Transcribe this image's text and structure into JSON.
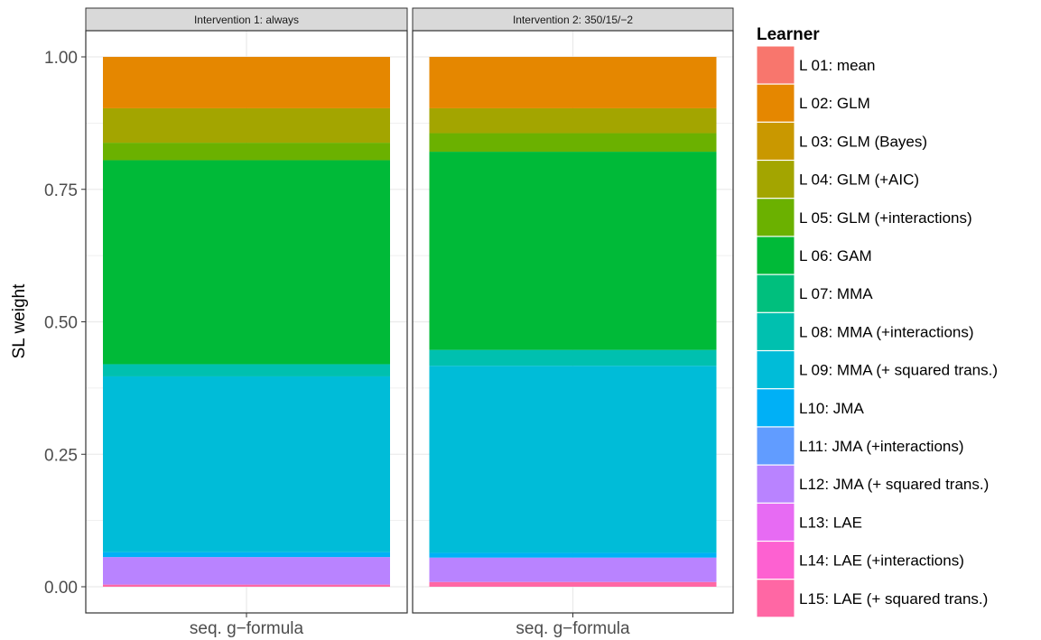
{
  "chart_data": {
    "type": "bar",
    "stacked": true,
    "ylabel": "SL weight",
    "ylim": [
      0,
      1
    ],
    "yticks": [
      "0.00",
      "0.25",
      "0.50",
      "0.75",
      "1.00"
    ],
    "grid": true,
    "legend_position": "right",
    "legend_title": "Learner",
    "learners": [
      {
        "name": "L 01: mean",
        "color": "#F8766D"
      },
      {
        "name": "L 02: GLM",
        "color": "#E58700"
      },
      {
        "name": "L 03: GLM (Bayes)",
        "color": "#C99800"
      },
      {
        "name": "L 04: GLM (+AIC)",
        "color": "#A3A500"
      },
      {
        "name": "L 05: GLM (+interactions)",
        "color": "#6BB100"
      },
      {
        "name": "L 06: GAM",
        "color": "#00BA38"
      },
      {
        "name": "L 07: MMA",
        "color": "#00BF7D"
      },
      {
        "name": "L 08: MMA (+interactions)",
        "color": "#00C0AF"
      },
      {
        "name": "L 09: MMA (+ squared trans.)",
        "color": "#00BCD8"
      },
      {
        "name": "L10: JMA",
        "color": "#00B0F6"
      },
      {
        "name": "L11: JMA (+interactions)",
        "color": "#619CFF"
      },
      {
        "name": "L12: JMA (+ squared trans.)",
        "color": "#B983FF"
      },
      {
        "name": "L13: LAE",
        "color": "#E76BF3"
      },
      {
        "name": "L14: LAE (+interactions)",
        "color": "#FD61D1"
      },
      {
        "name": "L15: LAE (+ squared trans.)",
        "color": "#FF67A4"
      }
    ],
    "panels": [
      {
        "strip": "Intervention 1: always",
        "category": "seq. g−formula",
        "values": [
          0.0,
          0.097,
          0.0,
          0.065,
          0.033,
          0.385,
          0.0,
          0.023,
          0.332,
          0.009,
          0.0,
          0.052,
          0.0,
          0.0,
          0.004
        ]
      },
      {
        "strip": "Intervention 2: 350/15/−2",
        "category": "seq. g−formula",
        "values": [
          0.0,
          0.097,
          0.0,
          0.047,
          0.035,
          0.374,
          0.0,
          0.03,
          0.353,
          0.009,
          0.0,
          0.046,
          0.0,
          0.0,
          0.009
        ]
      }
    ]
  }
}
